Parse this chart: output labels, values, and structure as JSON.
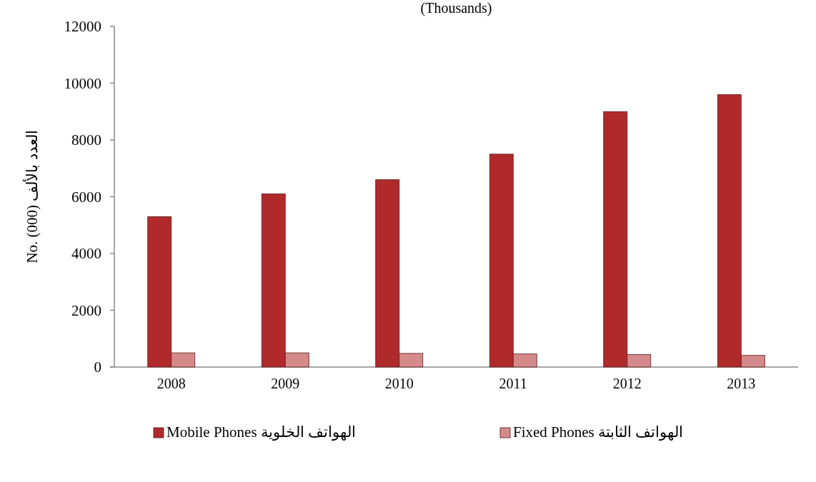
{
  "chart_data": {
    "type": "bar",
    "title": "(Thousands)",
    "ylabel": "No.  (000)     العدد بالألف",
    "categories": [
      "2008",
      "2009",
      "2010",
      "2011",
      "2012",
      "2013"
    ],
    "series": [
      {
        "name": "Mobile Phones  الهواتف الخلوية",
        "color": "#b02a2c",
        "values": [
          5300,
          6100,
          6600,
          7500,
          9000,
          9600
        ]
      },
      {
        "name": "Fixed Phones  الهواتف الثابتة",
        "color": "#d48a8a",
        "values": [
          500,
          500,
          480,
          460,
          440,
          410
        ]
      }
    ],
    "ylim": [
      0,
      12000
    ],
    "yticks": [
      0,
      2000,
      4000,
      6000,
      8000,
      10000,
      12000
    ],
    "legend": "bottom"
  }
}
